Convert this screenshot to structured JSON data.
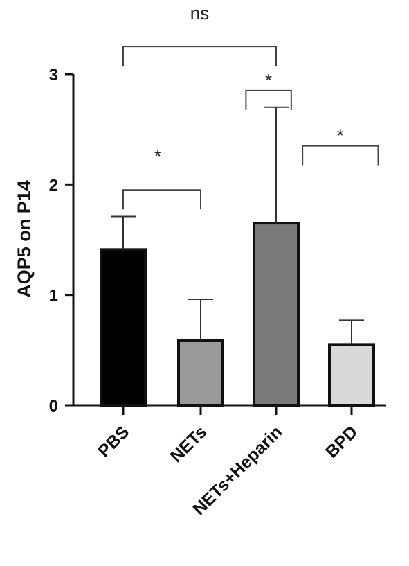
{
  "chart_data": {
    "type": "bar",
    "categories": [
      "PBS",
      "NETs",
      "NETs+Heparin",
      "BPD"
    ],
    "values": [
      1.41,
      0.59,
      1.65,
      0.55
    ],
    "errors_upper": [
      1.71,
      0.96,
      2.7,
      0.77
    ],
    "colors": [
      "#000000",
      "#9a9a9a",
      "#7a7a7a",
      "#d9d9d9"
    ],
    "ylabel": "AQP5 on P14",
    "xlabel": "",
    "ylim": [
      0,
      3
    ],
    "yticks": [
      0,
      1,
      2,
      3
    ],
    "grid": false,
    "annotations": [
      {
        "from": 0,
        "to": 2,
        "label": "ns",
        "level": 3.25
      },
      {
        "from": 0,
        "to": 1,
        "label": "*",
        "level": 1.95
      },
      {
        "from": 1.6,
        "to": 2.2,
        "label": "*",
        "level": 2.85
      },
      {
        "from": 2.35,
        "to": 3.35,
        "label": "*",
        "level": 2.35
      }
    ]
  }
}
